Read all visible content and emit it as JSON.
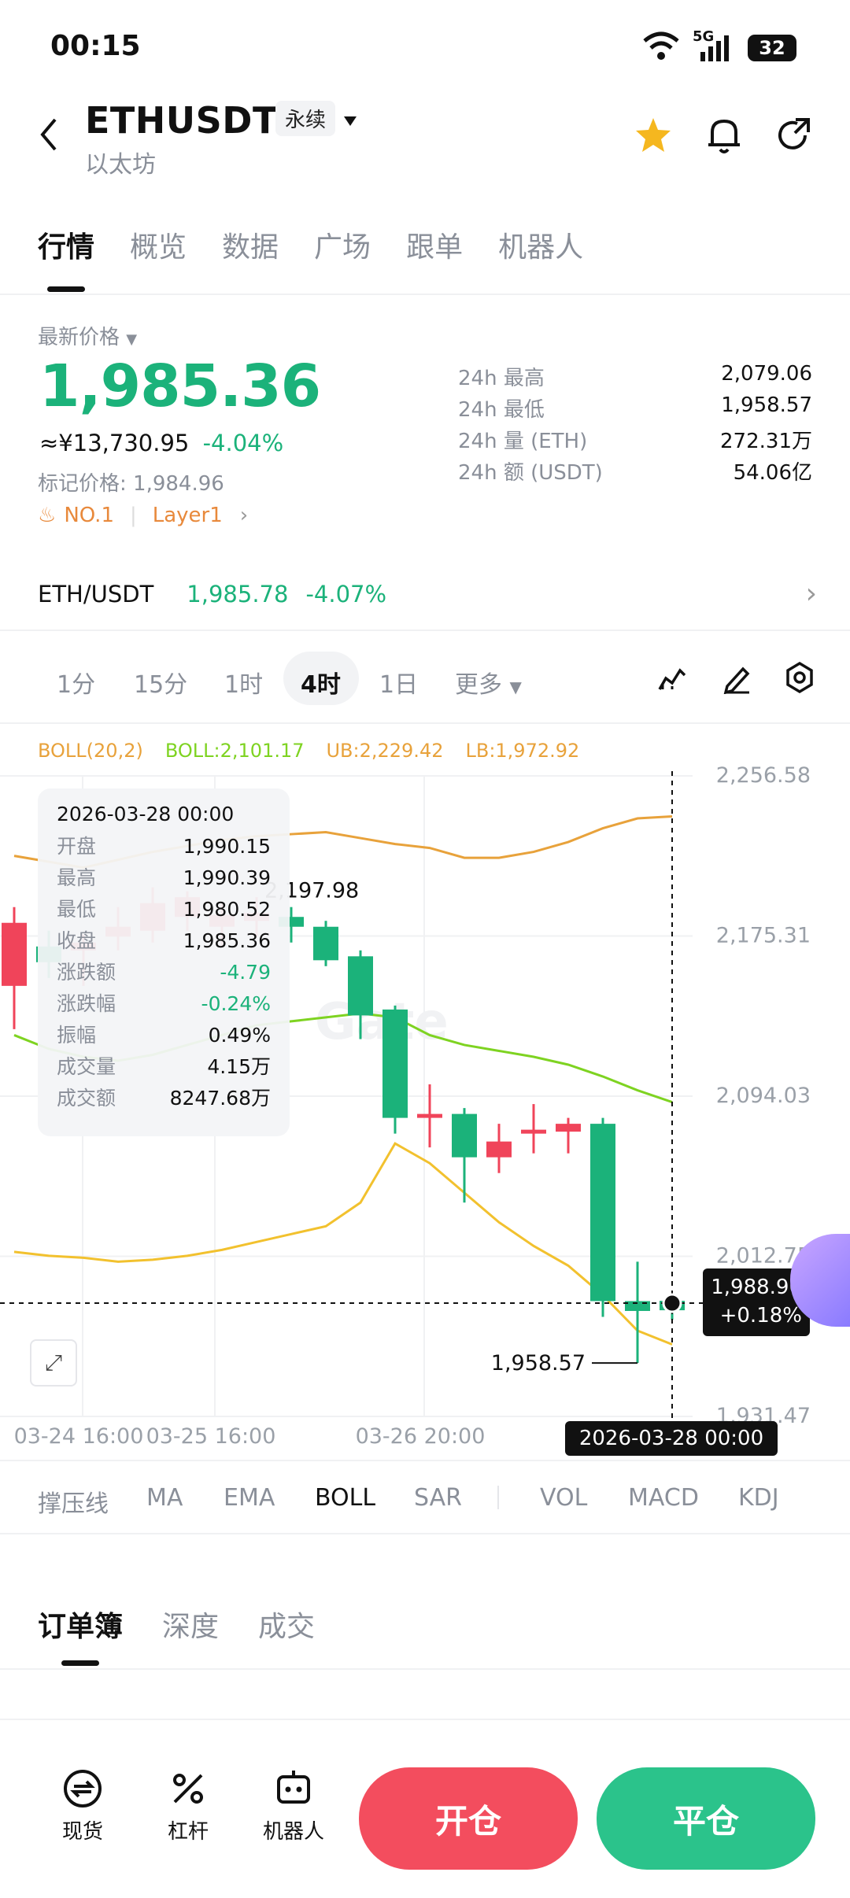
{
  "status": {
    "time": "00:15",
    "network": "5G",
    "battery": "32"
  },
  "header": {
    "symbol": "ETHUSDT",
    "contract_type": "永续",
    "name": "以太坊"
  },
  "tabs": [
    "行情",
    "概览",
    "数据",
    "广场",
    "跟单",
    "机器人"
  ],
  "ticker": {
    "latest_label": "最新价格",
    "price": "1,985.36",
    "cny": "≈¥13,730.95",
    "change": "-4.04%",
    "mark_label": "标记价格: 1,984.96",
    "tag_rank": "NO.1",
    "tag_sector": "Layer1",
    "stats": [
      {
        "label": "24h  最高",
        "value": "2,079.06"
      },
      {
        "label": "24h  最低",
        "value": "1,958.57"
      },
      {
        "label": "24h  量 (ETH)",
        "value": "272.31万"
      },
      {
        "label": "24h  额 (USDT)",
        "value": "54.06亿"
      }
    ]
  },
  "spot": {
    "pair": "ETH/USDT",
    "price": "1,985.78",
    "change": "-4.07%"
  },
  "intervals": [
    "1分",
    "15分",
    "1时",
    "4时",
    "1日",
    "更多"
  ],
  "chart_data": {
    "type": "candlestick",
    "indicator_legend": {
      "boll": "BOLL(20,2)",
      "mid": "BOLL:2,101.17",
      "ub": "UB:2,229.42",
      "lb": "LB:1,972.92"
    },
    "y_ticks": [
      "2,256.58",
      "2,175.31",
      "2,094.03",
      "2,012.75",
      "1,931.47"
    ],
    "x_ticks": [
      "03-24 16:00",
      "03-25 16:00",
      "03-26 20:00"
    ],
    "ylim": [
      1931.47,
      2256.58
    ],
    "candles": [
      {
        "o": 2150,
        "c": 2182,
        "h": 2190,
        "l": 2128
      },
      {
        "o": 2170,
        "c": 2162,
        "h": 2178,
        "l": 2154
      },
      {
        "o": 2168,
        "c": 2172,
        "h": 2176,
        "l": 2150
      },
      {
        "o": 2175,
        "c": 2180,
        "h": 2190,
        "l": 2168
      },
      {
        "o": 2178,
        "c": 2192,
        "h": 2200,
        "l": 2172
      },
      {
        "o": 2185,
        "c": 2195,
        "h": 2198,
        "l": 2178
      },
      {
        "o": 2180,
        "c": 2186,
        "h": 2192,
        "l": 2170
      },
      {
        "o": 2183,
        "c": 2187,
        "h": 2195,
        "l": 2175
      },
      {
        "o": 2185,
        "c": 2180,
        "h": 2190,
        "l": 2172
      },
      {
        "o": 2180,
        "c": 2163,
        "h": 2183,
        "l": 2160
      },
      {
        "o": 2165,
        "c": 2135,
        "h": 2168,
        "l": 2123
      },
      {
        "o": 2138,
        "c": 2083,
        "h": 2140,
        "l": 2075
      },
      {
        "o": 2083,
        "c": 2085,
        "h": 2100,
        "l": 2068
      },
      {
        "o": 2085,
        "c": 2063,
        "h": 2088,
        "l": 2040
      },
      {
        "o": 2063,
        "c": 2071,
        "h": 2080,
        "l": 2055
      },
      {
        "o": 2075,
        "c": 2077,
        "h": 2090,
        "l": 2065
      },
      {
        "o": 2076,
        "c": 2080,
        "h": 2083,
        "l": 2065
      },
      {
        "o": 2080,
        "c": 1990,
        "h": 2083,
        "l": 1982
      },
      {
        "o": 1990,
        "c": 1985,
        "h": 2010,
        "l": 1958.57
      },
      {
        "o": 1990.15,
        "c": 1985.36,
        "h": 1990.39,
        "l": 1980.52
      }
    ],
    "boll_ub": [
      2216,
      2213,
      2210,
      2214,
      2218,
      2221,
      2224,
      2226,
      2227,
      2228,
      2225,
      2222,
      2220,
      2215,
      2215,
      2218,
      2223,
      2230,
      2235,
      2236
    ],
    "boll_mid": [
      2125,
      2118,
      2114,
      2112,
      2115,
      2120,
      2125,
      2130,
      2132,
      2134,
      2136,
      2134,
      2125,
      2120,
      2117,
      2114,
      2110,
      2104,
      2097,
      2091
    ],
    "boll_lb": [
      2015,
      2013,
      2012,
      2010,
      2011,
      2013,
      2016,
      2020,
      2024,
      2028,
      2040,
      2070,
      2060,
      2045,
      2030,
      2018,
      2008,
      1993,
      1975,
      1968
    ],
    "peak_label": "2,197.98",
    "low_label": "1,958.57",
    "crosshair_price": "1,988.96",
    "crosshair_change": "+0.18%",
    "crosshair_time": "2026-03-28 00:00",
    "tooltip": {
      "time": "2026-03-28 00:00",
      "rows": [
        {
          "k": "开盘",
          "v": "1,990.15"
        },
        {
          "k": "最高",
          "v": "1,990.39"
        },
        {
          "k": "最低",
          "v": "1,980.52"
        },
        {
          "k": "收盘",
          "v": "1,985.36"
        },
        {
          "k": "涨跌额",
          "v": "-4.79",
          "tone": "green"
        },
        {
          "k": "涨跌幅",
          "v": "-0.24%",
          "tone": "green"
        },
        {
          "k": "振幅",
          "v": "0.49%"
        },
        {
          "k": "成交量",
          "v": "4.15万"
        },
        {
          "k": "成交额",
          "v": "8247.68万"
        }
      ]
    }
  },
  "indicators": [
    "撑压线",
    "MA",
    "EMA",
    "BOLL",
    "SAR",
    "VOL",
    "MACD",
    "KDJ"
  ],
  "book_tabs": [
    "订单簿",
    "深度",
    "成交"
  ],
  "bottom_nav": [
    "现货",
    "杠杆",
    "机器人"
  ],
  "actions": {
    "open": "开仓",
    "close": "平仓"
  },
  "colors": {
    "up": "#f0445a",
    "down": "#1bb27a",
    "upper": "#e8a23b",
    "mid": "#7ed321",
    "lower": "#f2c12e"
  }
}
